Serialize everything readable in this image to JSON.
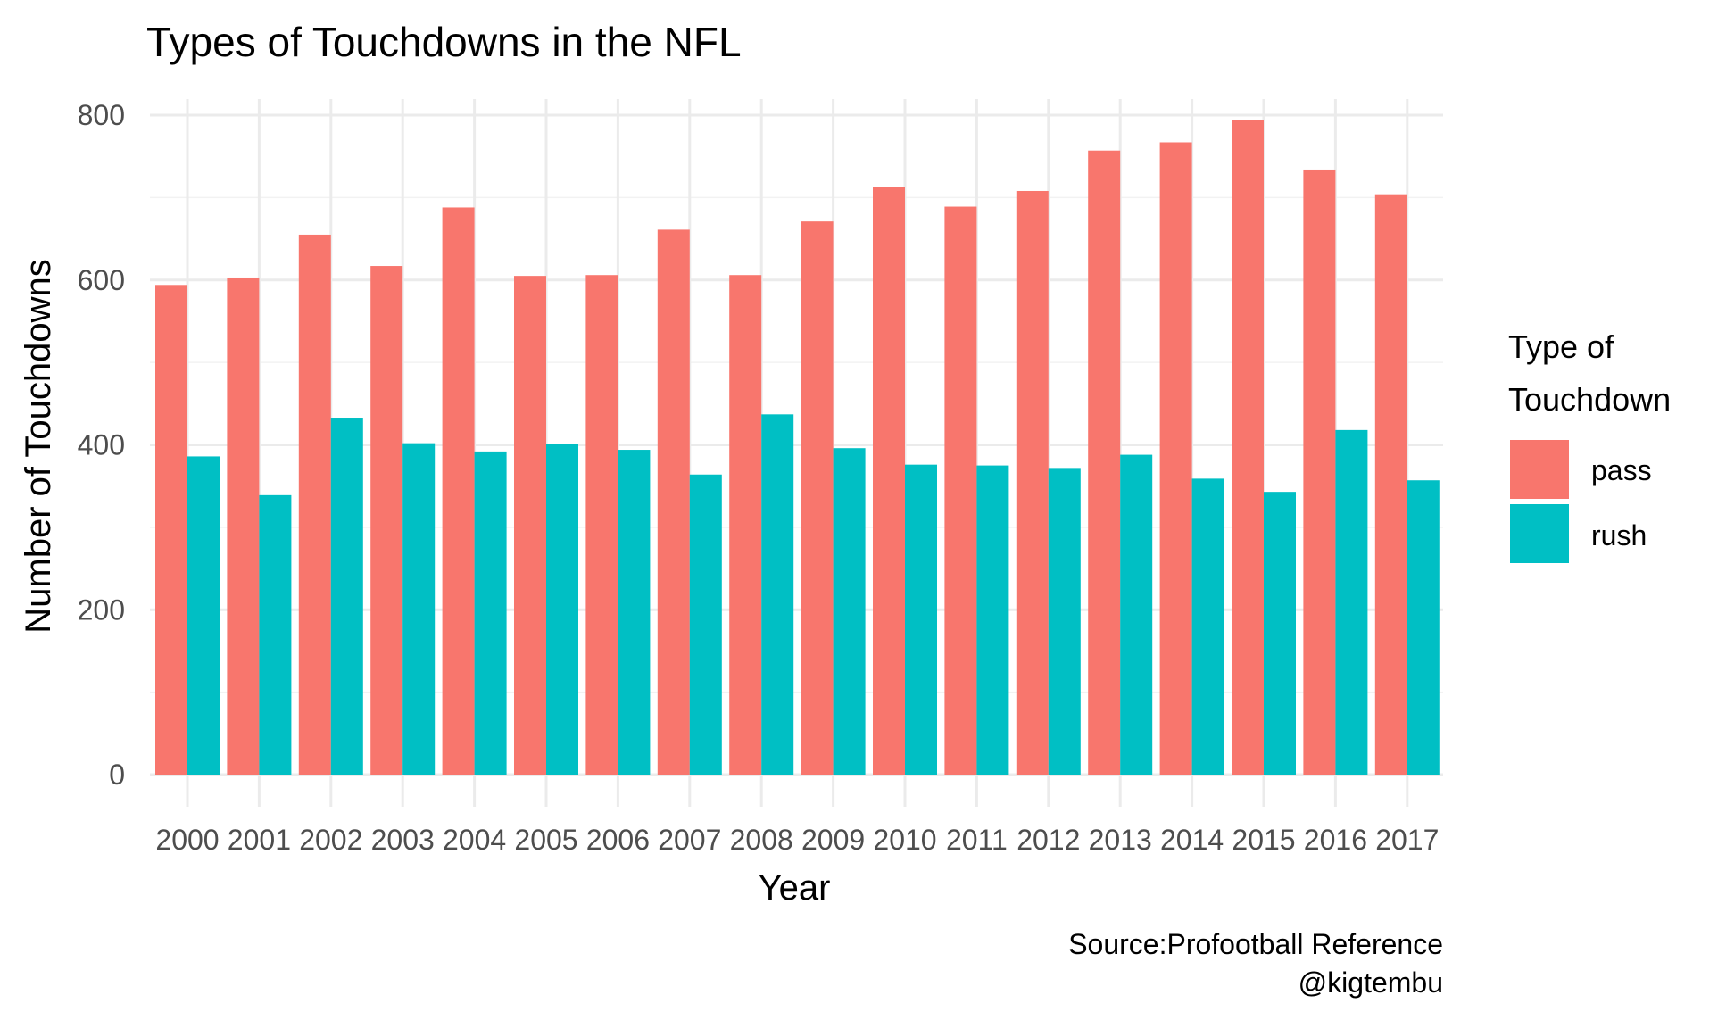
{
  "chart_data": {
    "type": "bar",
    "title": "Types of Touchdowns in the NFL",
    "xlabel": "Year",
    "ylabel": "Number of Touchdowns",
    "categories": [
      "2000",
      "2001",
      "2002",
      "2003",
      "2004",
      "2005",
      "2006",
      "2007",
      "2008",
      "2009",
      "2010",
      "2011",
      "2012",
      "2013",
      "2014",
      "2015",
      "2016",
      "2017"
    ],
    "series": [
      {
        "name": "pass",
        "color": "#F8766D",
        "values": [
          594,
          603,
          655,
          617,
          688,
          605,
          606,
          661,
          606,
          671,
          713,
          689,
          708,
          757,
          767,
          794,
          734,
          704
        ]
      },
      {
        "name": "rush",
        "color": "#00BFC4",
        "values": [
          386,
          339,
          433,
          402,
          392,
          401,
          394,
          364,
          437,
          396,
          376,
          375,
          372,
          388,
          359,
          343,
          418,
          357
        ]
      }
    ],
    "ylim": [
      0,
      800
    ],
    "yticks": [
      0,
      200,
      400,
      600,
      800
    ],
    "legend": {
      "title_lines": [
        "Type of",
        "Touchdown"
      ],
      "placement": "right"
    },
    "grid": true,
    "caption_lines": [
      "Source:Profootball Reference",
      "@kigtembu"
    ]
  }
}
